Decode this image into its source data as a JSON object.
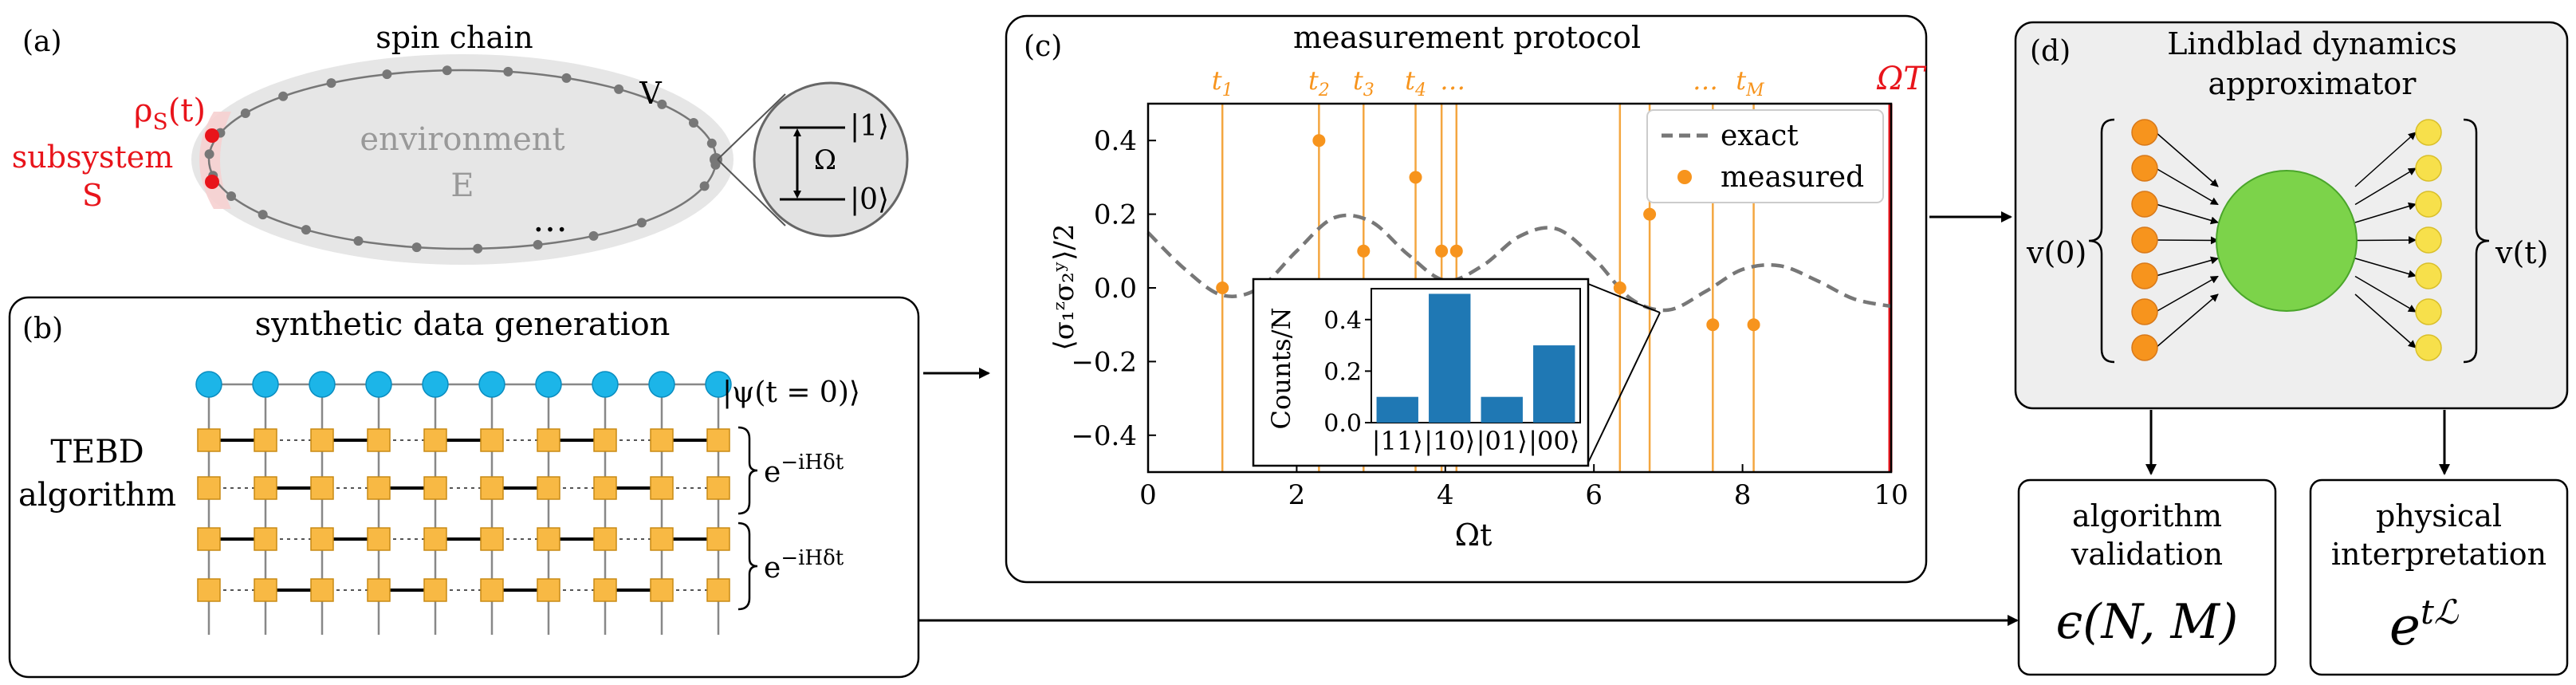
{
  "panels": {
    "a": {
      "tag": "(a)",
      "title": "spin chain",
      "rho_label": "ρ",
      "rho_sub": "S",
      "rho_arg": "(t)",
      "subsystem_label": "subsystem",
      "subsystem_symbol": "S",
      "environment_label": "environment",
      "environment_symbol": "E",
      "coupling_label": "V",
      "ellipsis": "…",
      "level_upper": "|1⟩",
      "level_lower": "|0⟩",
      "omega_label": "Ω"
    },
    "b": {
      "tag": "(b)",
      "title": "synthetic data generation",
      "algo_line1": "TEBD",
      "algo_line2": "algorithm",
      "state_label": "|ψ(t = 0)⟩",
      "gate_label_base": "e",
      "gate_label_exp": "−iHδt",
      "num_sites": 10
    },
    "c": {
      "tag": "(c)",
      "title": "measurement protocol",
      "time_labels": [
        "t",
        "t",
        "t",
        "t",
        "…",
        "…",
        "t"
      ],
      "time_label_subs": [
        "1",
        "2",
        "3",
        "4",
        "",
        "",
        "M"
      ],
      "end_label": "ΩT",
      "ylabel": "⟨σ₁ᶻσ₂ʸ⟩/2",
      "xlabel": "Ωt",
      "legend_exact": "exact",
      "legend_measured": "measured"
    },
    "d": {
      "tag": "(d)",
      "title_line1": "Lindblad dynamics",
      "title_line2": "approximator",
      "input_label": "v(0)",
      "output_label": "v(t)",
      "input_nodes": 7,
      "output_nodes": 7
    },
    "validation": {
      "line1": "algorithm",
      "line2": "validation",
      "formula": "ϵ(N, M)"
    },
    "interpretation": {
      "line1": "physical",
      "line2": "interpretation",
      "formula_base": "e",
      "formula_exp": "tℒ"
    }
  },
  "chart_data": [
    {
      "type": "scatter",
      "title": "measurement protocol",
      "xlabel": "Ωt",
      "ylabel": "⟨σ₁ᶻσ₂ʸ⟩/2",
      "xlim": [
        0,
        10
      ],
      "ylim": [
        -0.5,
        0.5
      ],
      "xticks": [
        0,
        2,
        4,
        6,
        8,
        10
      ],
      "yticks": [
        -0.4,
        -0.2,
        0.0,
        0.2,
        0.4
      ],
      "xtick_labels": [
        "0",
        "2",
        "4",
        "6",
        "8",
        "10"
      ],
      "ytick_labels": [
        "−0.4",
        "−0.2",
        "0.0",
        "0.2",
        "0.4"
      ],
      "measurement_times": [
        1.0,
        2.3,
        2.9,
        3.6,
        3.95,
        4.15,
        6.35,
        6.75,
        7.6,
        8.15
      ],
      "measured_values": [
        0.0,
        0.4,
        0.1,
        0.3,
        0.1,
        0.1,
        0.0,
        0.2,
        -0.1,
        -0.1
      ],
      "exact_curve": {
        "x": [
          0,
          0.5,
          1.0,
          1.5,
          2.0,
          2.5,
          3.0,
          3.5,
          4.0,
          4.5,
          5.0,
          5.5,
          6.0,
          6.5,
          7.0,
          7.5,
          8.0,
          8.5,
          9.0,
          9.5,
          10.0
        ],
        "y": [
          0.15,
          0.05,
          -0.02,
          0.0,
          0.1,
          0.19,
          0.18,
          0.09,
          0.02,
          0.06,
          0.14,
          0.16,
          0.08,
          -0.03,
          -0.06,
          -0.01,
          0.05,
          0.06,
          0.02,
          -0.03,
          -0.05
        ]
      },
      "end_time": 10,
      "legend": [
        "exact",
        "measured"
      ],
      "legend_position": "top-right"
    },
    {
      "type": "bar",
      "title": "",
      "ylabel": "Counts/N",
      "categories": [
        "|11⟩",
        "|10⟩",
        "|01⟩",
        "|00⟩"
      ],
      "values": [
        0.1,
        0.5,
        0.1,
        0.3
      ],
      "ylim": [
        0,
        0.5
      ],
      "yticks": [
        0.0,
        0.2,
        0.4
      ],
      "ytick_labels": [
        "0.0",
        "0.2",
        "0.4"
      ]
    }
  ],
  "colors": {
    "red": "#e8141b",
    "orange": "#f7941d",
    "orange_line": "#f4a640",
    "blue_node": "#1cb5e8",
    "gate": "#f8b944",
    "bar": "#1f78b4",
    "green": "#7cd34a",
    "yellow": "#f7e04b",
    "gray_fill": "#eeeeee",
    "env_fill": "#e4e4e4"
  }
}
